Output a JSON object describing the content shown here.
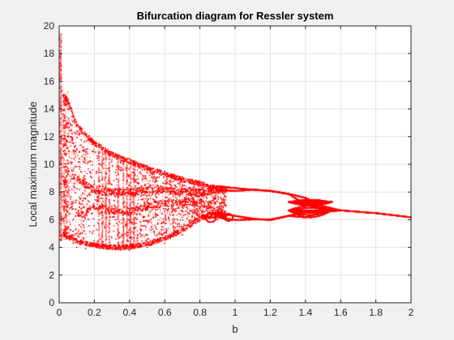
{
  "chart_data": {
    "type": "scatter",
    "title": "Bifurcation diagram for Ressler system",
    "xlabel": "b",
    "ylabel": "Local maximum magnitude",
    "xlim": [
      0,
      2
    ],
    "ylim": [
      0,
      20
    ],
    "x_ticks": [
      "0",
      "0.2",
      "0.4",
      "0.6",
      "0.8",
      "1",
      "1.2",
      "1.4",
      "1.6",
      "1.8",
      "2"
    ],
    "y_ticks": [
      "0",
      "2",
      "4",
      "6",
      "8",
      "10",
      "12",
      "14",
      "16",
      "18",
      "20"
    ],
    "grid": true,
    "legend": "none",
    "colors": {
      "marker": "#ff0000",
      "axes_background": "#ffffff",
      "figure_background": "#f0f0f0",
      "grid": "#e3e3e3",
      "axis": "#262626"
    },
    "series": [
      {
        "marker": "point",
        "description_points": "approximate envelope samples (b, local maximum)",
        "points": [
          [
            0.0,
            19.0
          ],
          [
            0.0,
            17.0
          ],
          [
            0.0,
            15.5
          ],
          [
            0.01,
            15.3
          ],
          [
            0.01,
            14.0
          ],
          [
            0.01,
            12.0
          ],
          [
            0.01,
            10.0
          ],
          [
            0.01,
            8.0
          ],
          [
            0.01,
            6.0
          ],
          [
            0.01,
            4.5
          ],
          [
            0.03,
            15.0
          ],
          [
            0.03,
            11.0
          ],
          [
            0.03,
            8.5
          ],
          [
            0.03,
            5.2
          ],
          [
            0.05,
            14.6
          ],
          [
            0.05,
            12.0
          ],
          [
            0.05,
            8.0
          ],
          [
            0.05,
            4.8
          ],
          [
            0.08,
            13.5
          ],
          [
            0.08,
            11.0
          ],
          [
            0.08,
            6.0
          ],
          [
            0.08,
            4.3
          ],
          [
            0.1,
            12.9
          ],
          [
            0.1,
            8.8
          ],
          [
            0.1,
            6.5
          ],
          [
            0.1,
            4.0
          ],
          [
            0.15,
            12.2
          ],
          [
            0.15,
            8.3
          ],
          [
            0.15,
            7.5
          ],
          [
            0.15,
            3.9
          ],
          [
            0.2,
            11.6
          ],
          [
            0.2,
            8.0
          ],
          [
            0.2,
            7.0
          ],
          [
            0.2,
            4.2
          ],
          [
            0.25,
            11.2
          ],
          [
            0.25,
            8.4
          ],
          [
            0.25,
            6.8
          ],
          [
            0.25,
            4.4
          ],
          [
            0.3,
            10.9
          ],
          [
            0.3,
            8.0
          ],
          [
            0.3,
            6.5
          ],
          [
            0.3,
            3.9
          ],
          [
            0.35,
            10.6
          ],
          [
            0.35,
            7.8
          ],
          [
            0.35,
            6.5
          ],
          [
            0.35,
            3.8
          ],
          [
            0.4,
            10.4
          ],
          [
            0.4,
            7.9
          ],
          [
            0.4,
            6.6
          ],
          [
            0.4,
            3.8
          ],
          [
            0.5,
            9.9
          ],
          [
            0.5,
            8.2
          ],
          [
            0.5,
            7.0
          ],
          [
            0.5,
            4.0
          ],
          [
            0.6,
            9.5
          ],
          [
            0.6,
            8.2
          ],
          [
            0.6,
            7.2
          ],
          [
            0.6,
            4.3
          ],
          [
            0.7,
            9.1
          ],
          [
            0.7,
            8.0
          ],
          [
            0.7,
            7.3
          ],
          [
            0.7,
            4.9
          ],
          [
            0.8,
            8.8
          ],
          [
            0.8,
            8.0
          ],
          [
            0.8,
            7.3
          ],
          [
            0.8,
            6.2
          ],
          [
            0.9,
            8.4
          ],
          [
            0.9,
            8.2
          ],
          [
            0.9,
            6.0
          ],
          [
            0.9,
            6.5
          ],
          [
            1.0,
            8.3
          ],
          [
            1.0,
            8.1
          ],
          [
            1.0,
            6.3
          ],
          [
            1.0,
            6.0
          ],
          [
            1.1,
            8.2
          ],
          [
            1.1,
            6.1
          ],
          [
            1.2,
            8.1
          ],
          [
            1.2,
            6.0
          ],
          [
            1.3,
            7.9
          ],
          [
            1.3,
            6.3
          ],
          [
            1.4,
            7.6
          ],
          [
            1.4,
            7.1
          ],
          [
            1.4,
            6.6
          ],
          [
            1.4,
            6.2
          ],
          [
            1.5,
            7.0
          ],
          [
            1.5,
            6.8
          ],
          [
            1.5,
            6.6
          ],
          [
            1.6,
            6.7
          ],
          [
            1.8,
            6.5
          ],
          [
            2.0,
            6.2
          ]
        ]
      }
    ]
  }
}
